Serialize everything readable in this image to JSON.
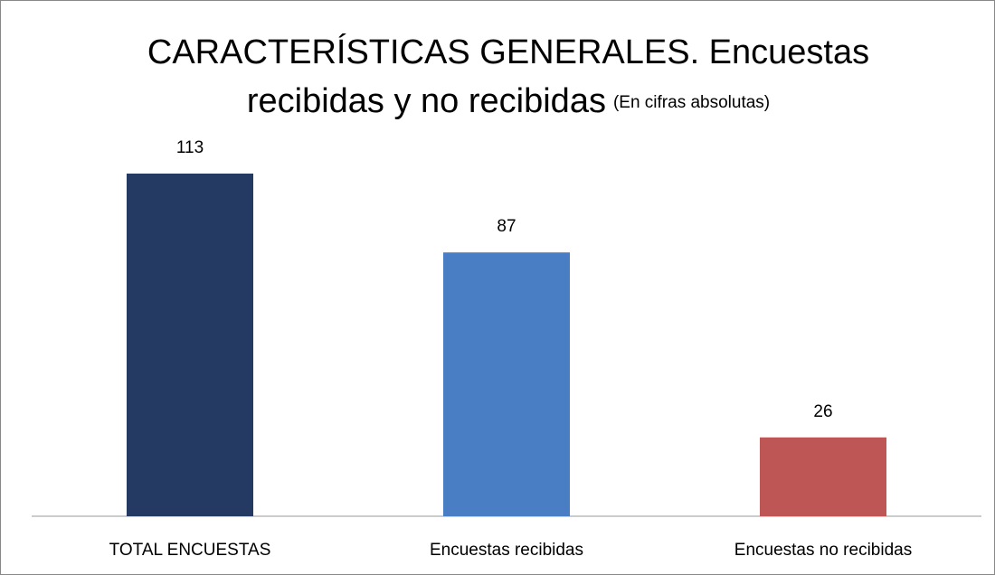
{
  "chart_data": {
    "type": "bar",
    "title": [
      "CARACTERÍSTICAS GENERALES. Encuestas",
      "recibidas y no recibidas"
    ],
    "subtitle": "(En cifras absolutas)",
    "categories": [
      "TOTAL ENCUESTAS",
      "Encuestas recibidas",
      "Encuestas no recibidas"
    ],
    "values": [
      113,
      87,
      26
    ],
    "colors": [
      "#243a63",
      "#4a7ec4",
      "#bd5655"
    ]
  }
}
